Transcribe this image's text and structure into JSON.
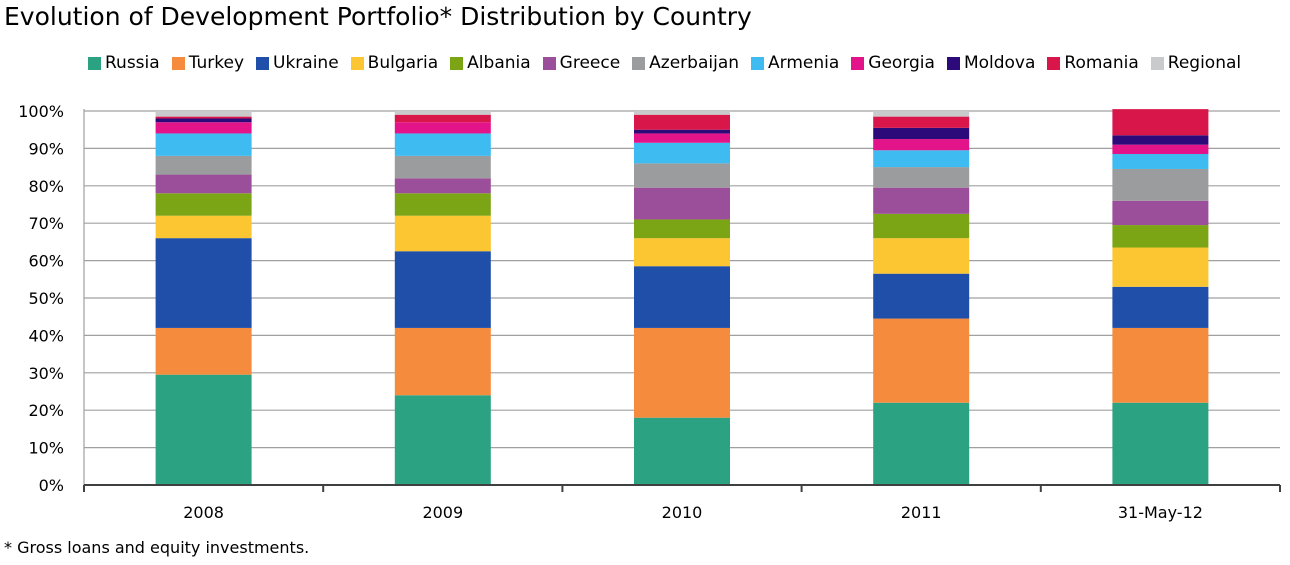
{
  "title": "Evolution of Development Portfolio* Distribution by Country",
  "footnote": "* Gross loans and equity investments.",
  "chart_data": {
    "type": "bar",
    "stacked": true,
    "title": "Evolution of Development Portfolio* Distribution by Country",
    "xlabel": "",
    "ylabel": "",
    "ylim": [
      0,
      100
    ],
    "yticks": [
      "0%",
      "10%",
      "20%",
      "30%",
      "40%",
      "50%",
      "60%",
      "70%",
      "80%",
      "90%",
      "100%"
    ],
    "grid": true,
    "legend_position": "top",
    "categories": [
      "2008",
      "2009",
      "2010",
      "2011",
      "31-May-12"
    ],
    "series": [
      {
        "name": "Russia",
        "color": "#2ba383",
        "values": [
          29.5,
          24,
          18,
          22,
          22
        ]
      },
      {
        "name": "Turkey",
        "color": "#f58c3d",
        "values": [
          12.5,
          18,
          24,
          22.5,
          20
        ]
      },
      {
        "name": "Ukraine",
        "color": "#1f4fa8",
        "values": [
          24,
          20.5,
          16.5,
          12,
          11
        ]
      },
      {
        "name": "Bulgaria",
        "color": "#fcc633",
        "values": [
          6,
          9.5,
          7.5,
          9.5,
          10.5
        ]
      },
      {
        "name": "Albania",
        "color": "#7ca516",
        "values": [
          6,
          6,
          5,
          6.5,
          6
        ]
      },
      {
        "name": "Greece",
        "color": "#9b4e9a",
        "values": [
          5,
          4,
          8.5,
          7,
          6.5
        ]
      },
      {
        "name": "Azerbaijan",
        "color": "#9b9c9e",
        "values": [
          5,
          6,
          6.5,
          5.5,
          8.5
        ]
      },
      {
        "name": "Armenia",
        "color": "#3ebbf0",
        "values": [
          6,
          6,
          5.5,
          4.5,
          4
        ]
      },
      {
        "name": "Georgia",
        "color": "#e3148a",
        "values": [
          3,
          3,
          2.5,
          3,
          2.5
        ]
      },
      {
        "name": "Moldova",
        "color": "#2d0a7a",
        "values": [
          1,
          0,
          1,
          3,
          2.5
        ]
      },
      {
        "name": "Romania",
        "color": "#d8164a",
        "values": [
          0.5,
          2,
          4,
          3,
          7
        ]
      },
      {
        "name": "Regional",
        "color": "#c8cacc",
        "values": [
          1.5,
          1,
          1,
          1.5,
          0
        ]
      }
    ]
  }
}
